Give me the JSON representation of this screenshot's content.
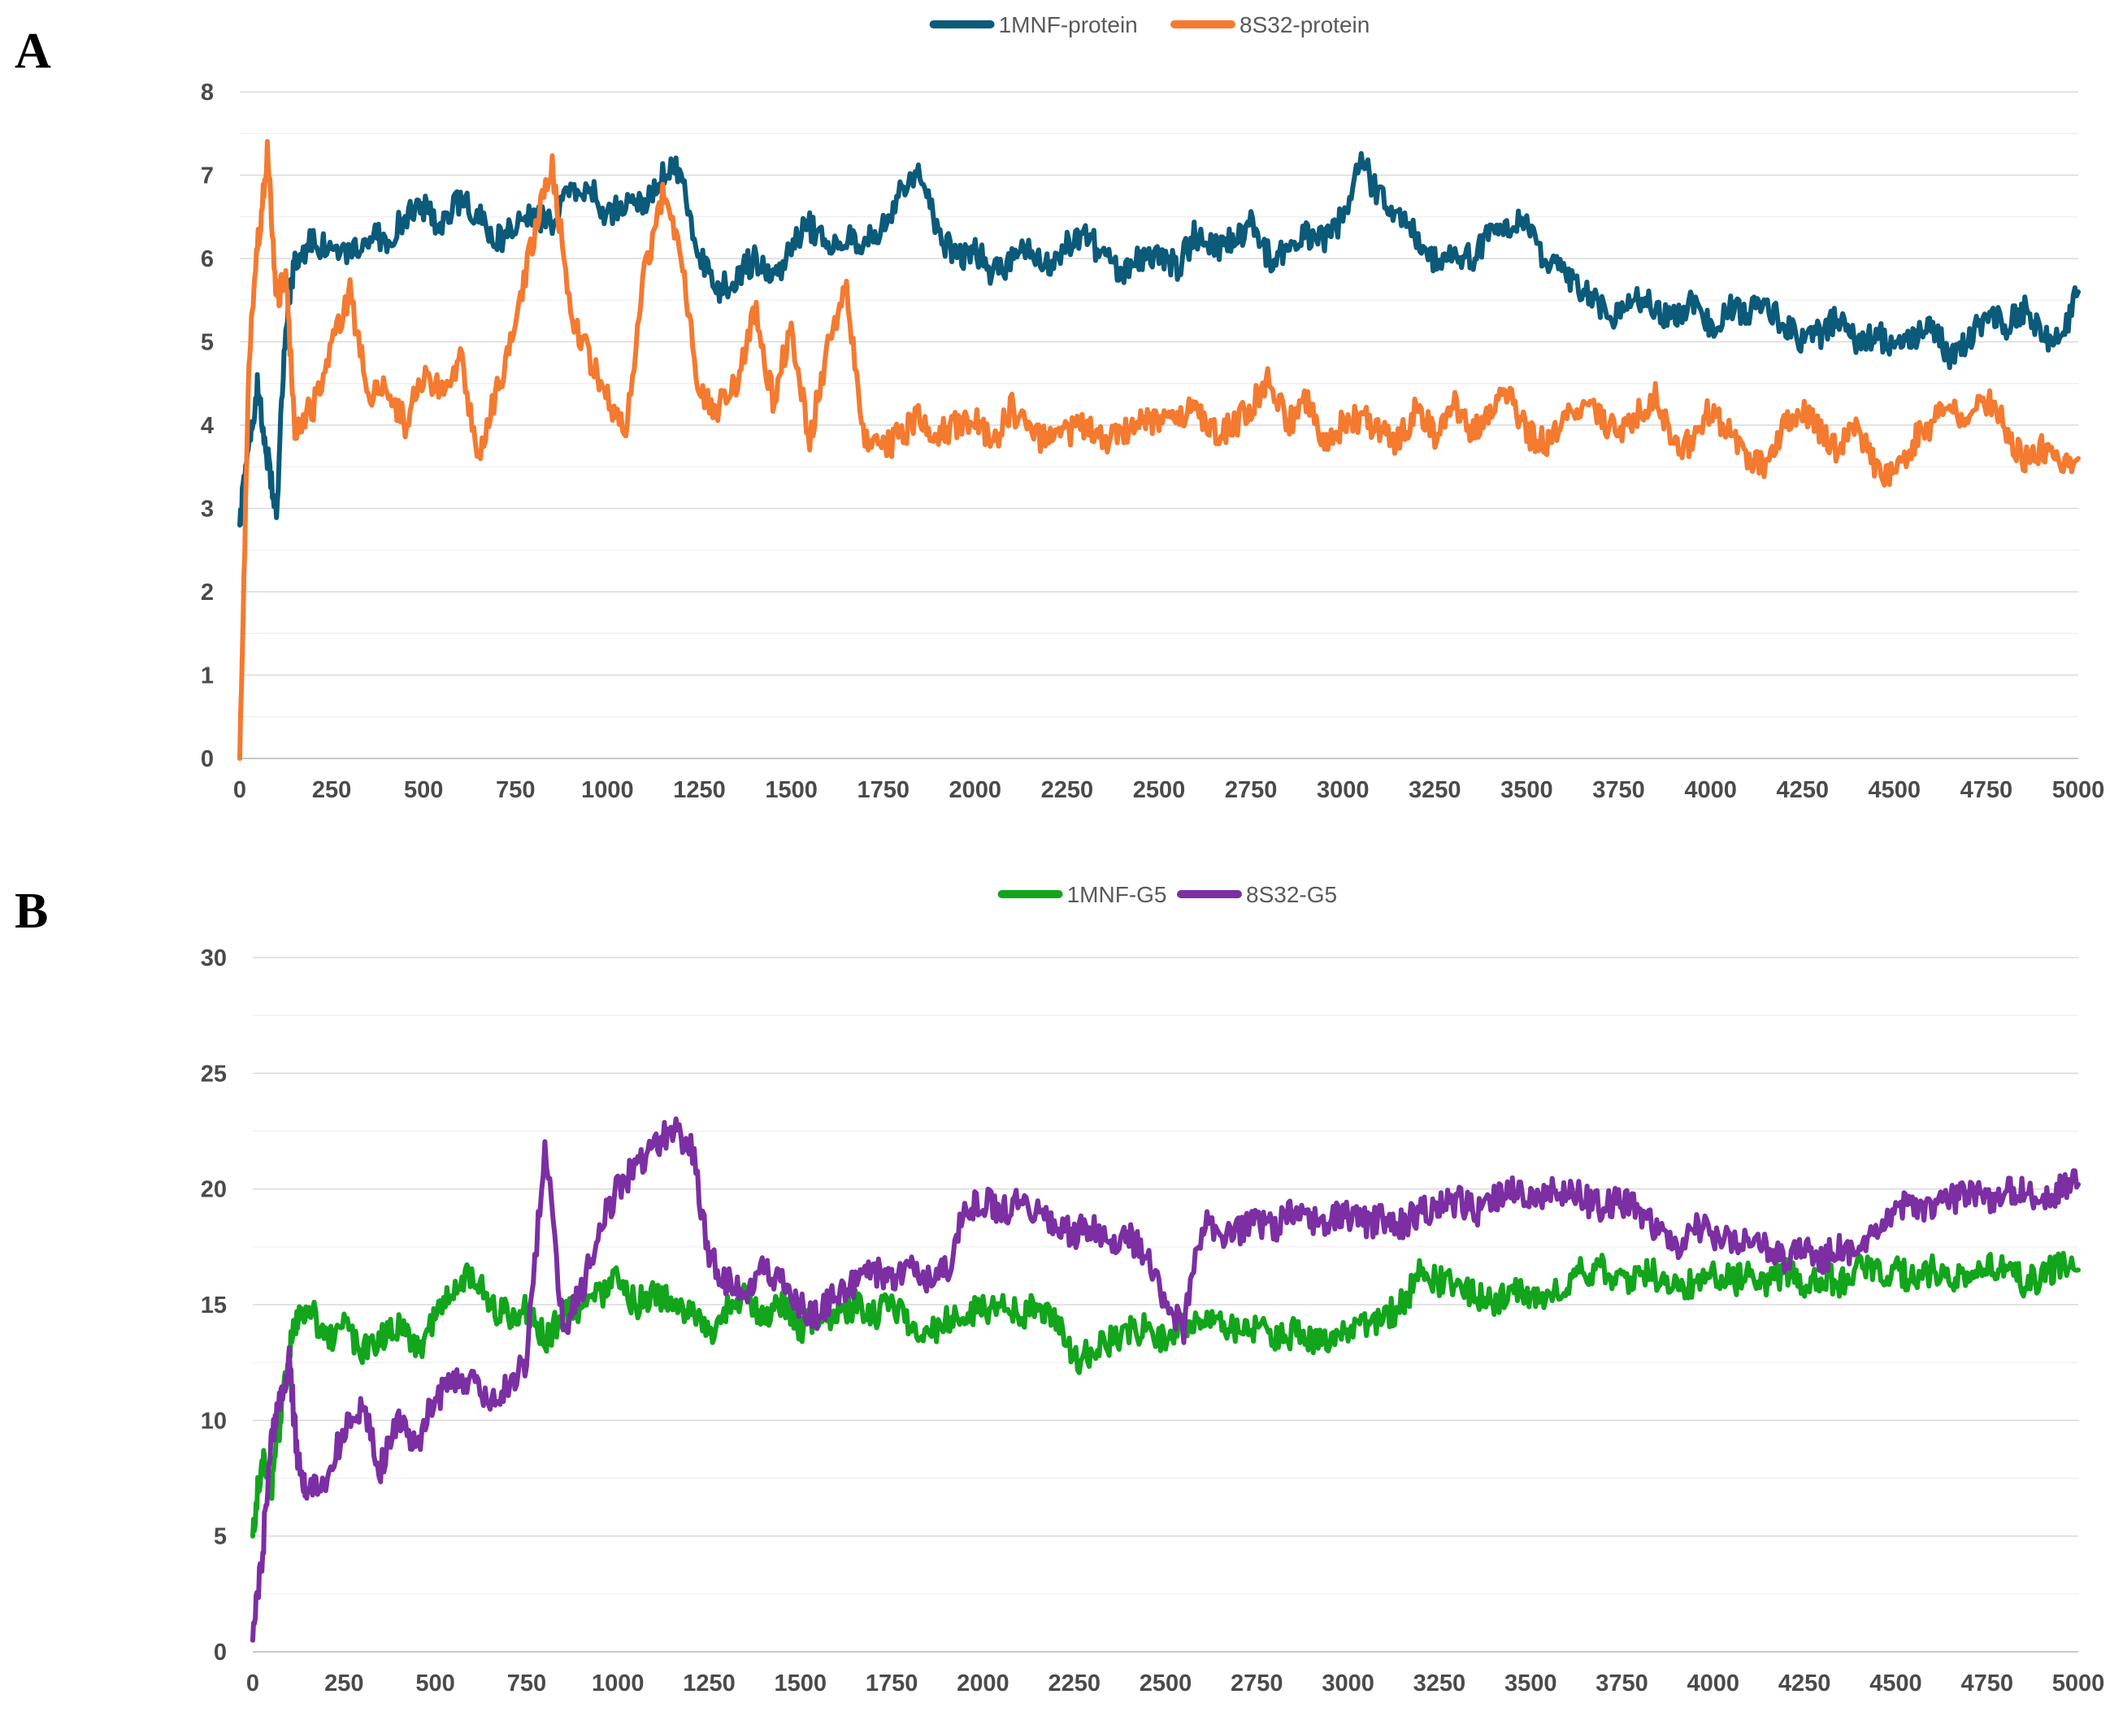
{
  "panels": {
    "a": {
      "letter": "A"
    },
    "b": {
      "letter": "B"
    }
  },
  "chart_data": [
    {
      "type": "line",
      "title": "",
      "xlabel": "",
      "ylabel": "",
      "xlim": [
        0,
        5000
      ],
      "ylim": [
        0,
        8
      ],
      "x_ticks": [
        0,
        250,
        500,
        750,
        1000,
        1250,
        1500,
        1750,
        2000,
        2250,
        2500,
        2750,
        3000,
        3250,
        3500,
        3750,
        4000,
        4250,
        4500,
        4750,
        5000
      ],
      "y_ticks": [
        0,
        1,
        2,
        3,
        4,
        5,
        6,
        7,
        8
      ],
      "grid": "horizontal",
      "legend": "top-center",
      "series": [
        {
          "name": "1MNF-protein",
          "color": "#0b5a7a",
          "x": [
            0,
            25,
            50,
            75,
            100,
            125,
            150,
            200,
            250,
            300,
            350,
            400,
            450,
            500,
            550,
            600,
            650,
            700,
            750,
            800,
            850,
            900,
            950,
            1000,
            1050,
            1100,
            1150,
            1200,
            1250,
            1300,
            1350,
            1400,
            1450,
            1500,
            1550,
            1600,
            1650,
            1700,
            1750,
            1800,
            1850,
            1900,
            1950,
            2000,
            2050,
            2100,
            2150,
            2200,
            2250,
            2300,
            2350,
            2400,
            2450,
            2500,
            2550,
            2600,
            2650,
            2700,
            2750,
            2800,
            2850,
            2900,
            2950,
            3000,
            3050,
            3100,
            3150,
            3200,
            3250,
            3300,
            3350,
            3400,
            3450,
            3500,
            3550,
            3600,
            3650,
            3700,
            3750,
            3800,
            3850,
            3900,
            3950,
            4000,
            4050,
            4100,
            4150,
            4200,
            4250,
            4300,
            4350,
            4400,
            4450,
            4500,
            4550,
            4600,
            4650,
            4700,
            4750,
            4800,
            4850,
            4900,
            4950,
            5000
          ],
          "values": [
            2.8,
            3.8,
            4.5,
            3.6,
            3.0,
            5.2,
            6.0,
            6.2,
            6.1,
            6.0,
            6.3,
            6.2,
            6.5,
            6.6,
            6.4,
            6.7,
            6.5,
            6.2,
            6.4,
            6.5,
            6.4,
            6.8,
            6.9,
            6.5,
            6.7,
            6.6,
            7.0,
            7.1,
            6.0,
            5.6,
            5.8,
            6.0,
            5.7,
            6.2,
            6.4,
            6.1,
            6.3,
            6.2,
            6.4,
            6.8,
            7.1,
            6.3,
            6.0,
            6.1,
            5.8,
            6.0,
            6.1,
            5.9,
            6.2,
            6.3,
            6.0,
            5.8,
            6.0,
            6.1,
            5.9,
            6.3,
            6.1,
            6.2,
            6.4,
            6.0,
            6.1,
            6.3,
            6.2,
            6.5,
            7.2,
            6.7,
            6.6,
            6.3,
            6.0,
            6.1,
            6.0,
            6.3,
            6.4,
            6.4,
            6.0,
            5.8,
            5.6,
            5.4,
            5.3,
            5.5,
            5.4,
            5.3,
            5.5,
            5.2,
            5.4,
            5.3,
            5.5,
            5.2,
            5.0,
            5.1,
            5.3,
            5.0,
            5.1,
            4.9,
            5.0,
            5.2,
            4.8,
            5.0,
            5.3,
            5.2,
            5.4,
            5.1,
            5.0,
            5.6
          ]
        },
        {
          "name": "8S32-protein",
          "color": "#f47a30",
          "x": [
            0,
            25,
            50,
            75,
            100,
            125,
            150,
            200,
            250,
            300,
            350,
            400,
            450,
            500,
            550,
            600,
            650,
            700,
            750,
            800,
            850,
            900,
            950,
            1000,
            1050,
            1100,
            1150,
            1200,
            1250,
            1300,
            1350,
            1400,
            1450,
            1500,
            1550,
            1600,
            1650,
            1700,
            1750,
            1800,
            1850,
            1900,
            1950,
            2000,
            2050,
            2100,
            2150,
            2200,
            2250,
            2300,
            2350,
            2400,
            2450,
            2500,
            2550,
            2600,
            2650,
            2700,
            2750,
            2800,
            2850,
            2900,
            2950,
            3000,
            3050,
            3100,
            3150,
            3200,
            3250,
            3300,
            3350,
            3400,
            3450,
            3500,
            3550,
            3600,
            3650,
            3700,
            3750,
            3800,
            3850,
            3900,
            3950,
            4000,
            4050,
            4100,
            4150,
            4200,
            4250,
            4300,
            4350,
            4400,
            4450,
            4500,
            4550,
            4600,
            4650,
            4700,
            4750,
            4800,
            4850,
            4900,
            4950,
            5000
          ],
          "values": [
            0.0,
            4.8,
            6.2,
            7.3,
            5.5,
            5.8,
            4.0,
            4.2,
            4.9,
            5.6,
            4.3,
            4.5,
            4.0,
            4.6,
            4.4,
            4.8,
            3.7,
            4.4,
            5.2,
            6.3,
            7.1,
            5.4,
            4.8,
            4.3,
            3.9,
            5.8,
            6.8,
            6.0,
            4.4,
            4.2,
            4.5,
            5.4,
            4.3,
            5.2,
            3.8,
            5.0,
            5.6,
            3.8,
            3.7,
            3.9,
            4.1,
            3.9,
            4.0,
            4.1,
            3.8,
            4.2,
            3.9,
            3.8,
            3.9,
            4.0,
            3.8,
            3.9,
            4.1,
            4.0,
            4.1,
            4.2,
            3.9,
            4.0,
            4.2,
            4.6,
            4.0,
            4.3,
            3.8,
            4.0,
            4.1,
            3.9,
            3.8,
            4.2,
            3.9,
            4.3,
            3.9,
            4.2,
            4.4,
            3.9,
            3.8,
            4.0,
            4.3,
            4.1,
            3.9,
            4.1,
            4.4,
            3.7,
            3.8,
            4.2,
            3.9,
            3.6,
            3.5,
            4.0,
            4.2,
            3.9,
            3.7,
            4.0,
            3.5,
            3.4,
            3.8,
            4.0,
            4.2,
            4.1,
            4.3,
            4.0,
            3.6,
            3.7,
            3.5,
            3.6
          ]
        }
      ]
    },
    {
      "type": "line",
      "title": "",
      "xlabel": "",
      "ylabel": "",
      "xlim": [
        0,
        5000
      ],
      "ylim": [
        0,
        30
      ],
      "x_ticks": [
        0,
        250,
        500,
        750,
        1000,
        1250,
        1500,
        1750,
        2000,
        2250,
        2500,
        2750,
        3000,
        3250,
        3500,
        3750,
        4000,
        4250,
        4500,
        4750,
        5000
      ],
      "y_ticks": [
        0,
        5,
        10,
        15,
        20,
        25,
        30
      ],
      "grid": "horizontal",
      "legend": "top-center",
      "series": [
        {
          "name": "1MNF-G5",
          "color": "#12a51c",
          "x": [
            0,
            25,
            50,
            75,
            100,
            125,
            150,
            200,
            250,
            300,
            350,
            400,
            450,
            500,
            550,
            600,
            650,
            700,
            750,
            800,
            850,
            900,
            950,
            1000,
            1050,
            1100,
            1150,
            1200,
            1250,
            1300,
            1350,
            1400,
            1450,
            1500,
            1550,
            1600,
            1650,
            1700,
            1750,
            1800,
            1850,
            1900,
            1950,
            2000,
            2050,
            2100,
            2150,
            2200,
            2250,
            2300,
            2350,
            2400,
            2450,
            2500,
            2550,
            2600,
            2650,
            2700,
            2750,
            2800,
            2850,
            2900,
            2950,
            3000,
            3050,
            3100,
            3150,
            3200,
            3250,
            3300,
            3350,
            3400,
            3450,
            3500,
            3550,
            3600,
            3650,
            3700,
            3750,
            3800,
            3850,
            3900,
            3950,
            4000,
            4050,
            4100,
            4150,
            4200,
            4250,
            4300,
            4350,
            4400,
            4450,
            4500,
            4550,
            4600,
            4650,
            4700,
            4750,
            4800,
            4850,
            4900,
            4950,
            5000
          ],
          "values": [
            5.0,
            8.5,
            7.0,
            10.0,
            13.0,
            14.5,
            15.0,
            13.5,
            14.0,
            13.0,
            13.5,
            14.2,
            13.0,
            14.5,
            15.5,
            16.5,
            15.0,
            14.5,
            14.8,
            13.5,
            14.5,
            15.0,
            15.5,
            16.0,
            15.0,
            15.5,
            15.0,
            14.5,
            13.8,
            14.8,
            15.5,
            14.5,
            15.2,
            14.0,
            14.5,
            14.5,
            15.0,
            14.5,
            15.0,
            14.0,
            13.5,
            14.5,
            14.5,
            14.8,
            15.0,
            14.5,
            15.0,
            14.5,
            12.5,
            13.0,
            13.5,
            13.8,
            14.0,
            13.5,
            14.0,
            14.0,
            14.2,
            13.8,
            14.0,
            13.5,
            13.8,
            13.5,
            13.5,
            14.0,
            14.2,
            14.5,
            15.0,
            16.5,
            16.0,
            15.8,
            15.5,
            15.0,
            15.5,
            15.5,
            15.2,
            16.0,
            16.5,
            16.5,
            16.0,
            16.5,
            16.2,
            15.8,
            16.0,
            16.5,
            16.0,
            16.2,
            16.0,
            16.5,
            16.0,
            16.2,
            16.0,
            16.5,
            16.3,
            16.5,
            16.0,
            16.5,
            16.2,
            16.5,
            16.8,
            16.5,
            16.0,
            16.2,
            16.8,
            16.5
          ]
        },
        {
          "name": "8S32-G5",
          "color": "#7b2fa3",
          "x": [
            0,
            25,
            50,
            75,
            100,
            125,
            150,
            200,
            250,
            300,
            350,
            400,
            450,
            500,
            550,
            600,
            650,
            700,
            750,
            800,
            850,
            900,
            950,
            1000,
            1050,
            1100,
            1150,
            1200,
            1250,
            1300,
            1350,
            1400,
            1450,
            1500,
            1550,
            1600,
            1650,
            1700,
            1750,
            1800,
            1850,
            1900,
            1950,
            2000,
            2050,
            2100,
            2150,
            2200,
            2250,
            2300,
            2350,
            2400,
            2450,
            2500,
            2550,
            2600,
            2650,
            2700,
            2750,
            2800,
            2850,
            2900,
            2950,
            3000,
            3050,
            3100,
            3150,
            3200,
            3250,
            3300,
            3350,
            3400,
            3450,
            3500,
            3550,
            3600,
            3650,
            3700,
            3750,
            3800,
            3850,
            3900,
            3950,
            4000,
            4050,
            4100,
            4150,
            4200,
            4250,
            4300,
            4350,
            4400,
            4450,
            4500,
            4550,
            4600,
            4650,
            4700,
            4750,
            4800,
            4850,
            4900,
            4950,
            5000
          ],
          "values": [
            0.5,
            4.0,
            9.0,
            11.0,
            12.5,
            8.0,
            7.0,
            7.5,
            9.5,
            10.5,
            8.0,
            10.0,
            9.0,
            11.0,
            11.5,
            12.0,
            10.5,
            11.5,
            12.5,
            22.0,
            14.0,
            15.5,
            18.5,
            20.0,
            21.0,
            22.0,
            22.5,
            22.0,
            17.0,
            16.0,
            15.5,
            16.5,
            16.0,
            15.0,
            14.5,
            15.5,
            16.0,
            16.5,
            16.0,
            16.5,
            16.0,
            16.5,
            19.0,
            19.5,
            19.0,
            19.5,
            19.0,
            18.5,
            18.0,
            18.5,
            17.5,
            18.0,
            17.0,
            15.0,
            14.0,
            18.5,
            18.0,
            18.2,
            18.5,
            18.3,
            19.0,
            18.5,
            18.7,
            18.8,
            18.5,
            18.7,
            18.5,
            19.0,
            19.2,
            19.5,
            19.0,
            19.5,
            20.0,
            19.5,
            19.8,
            20.0,
            19.5,
            19.2,
            19.5,
            19.0,
            18.0,
            17.5,
            18.5,
            18.0,
            17.8,
            18.0,
            17.5,
            17.0,
            17.5,
            17.0,
            17.5,
            17.0,
            18.5,
            19.0,
            19.5,
            19.0,
            19.5,
            20.0,
            19.5,
            19.8,
            20.0,
            19.5,
            20.0,
            20.2
          ]
        }
      ]
    }
  ]
}
